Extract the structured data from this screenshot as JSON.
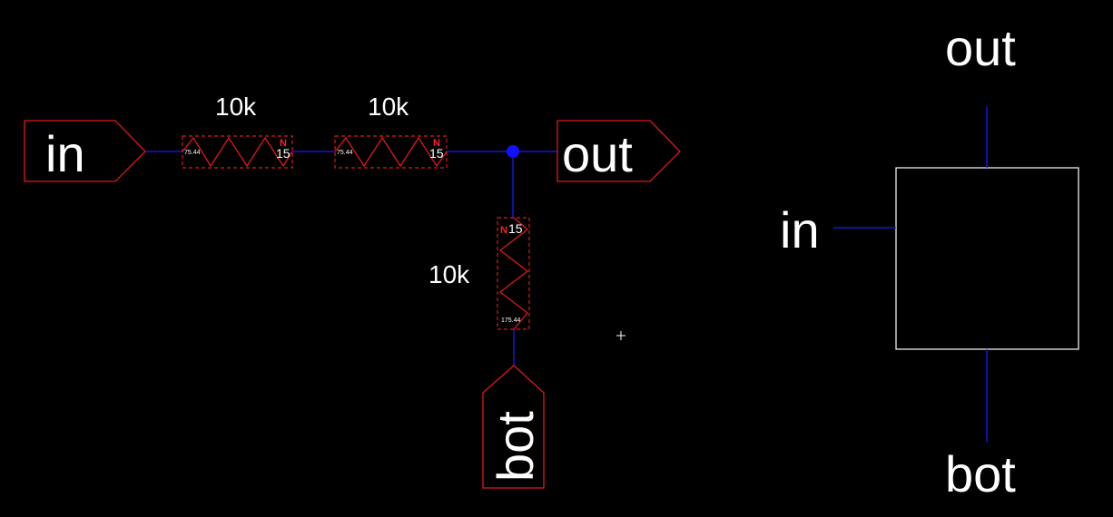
{
  "colors": {
    "background": "#000000",
    "wire": "#1a1aff",
    "component": "#e01818",
    "text": "#ffffff",
    "junction": "#1010ff"
  },
  "schematic": {
    "pins": {
      "in": "in",
      "out": "out",
      "bot": "bot"
    },
    "resistors": [
      {
        "value_label": "10k",
        "param_small": "75.44",
        "param_count": "15",
        "marker": "N"
      },
      {
        "value_label": "10k",
        "param_small": "75.44",
        "param_count": "15",
        "marker": "N"
      },
      {
        "value_label": "10k",
        "param_small": "175.44",
        "param_count": "15",
        "marker": "N"
      }
    ]
  },
  "symbol": {
    "pins": {
      "in": "in",
      "out": "out",
      "bot": "bot"
    }
  }
}
